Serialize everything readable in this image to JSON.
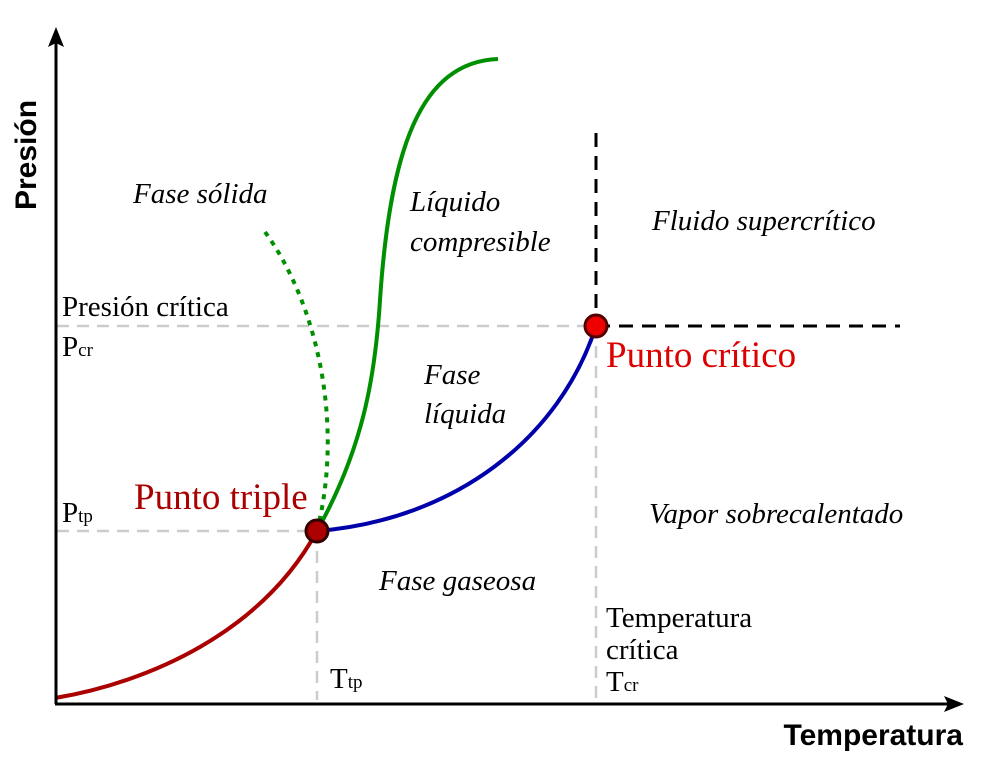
{
  "axes": {
    "x_label": "Temperatura",
    "y_label": "Presión"
  },
  "regions": {
    "solid": "Fase sólida",
    "compressible_liquid_line1": "Líquido",
    "compressible_liquid_line2": "compresible",
    "supercritical": "Fluido supercrítico",
    "liquid_line1": "Fase",
    "liquid_line2": "líquida",
    "superheated_vapor": "Vapor sobrecalentado",
    "gas": "Fase gaseosa"
  },
  "points": {
    "triple": {
      "label": "Punto triple",
      "color": "#aa0000"
    },
    "critical": {
      "label": "Punto crítico",
      "color": "#dd0000"
    }
  },
  "markers": {
    "critical_pressure_label": "Presión crítica",
    "p_cr": {
      "main": "P",
      "sub": "cr"
    },
    "p_tp": {
      "main": "P",
      "sub": "tp"
    },
    "t_tp": {
      "main": "T",
      "sub": "tp"
    },
    "critical_temperature_line1": "Temperatura",
    "critical_temperature_line2": "crítica",
    "t_cr": {
      "main": "T",
      "sub": "cr"
    }
  },
  "colors": {
    "sublimation_curve": "#aa0000",
    "vaporization_curve": "#0000aa",
    "fusion_curve": "#008f00",
    "guide_lines": "#cccccc",
    "supercritical_boundary": "#000000"
  }
}
